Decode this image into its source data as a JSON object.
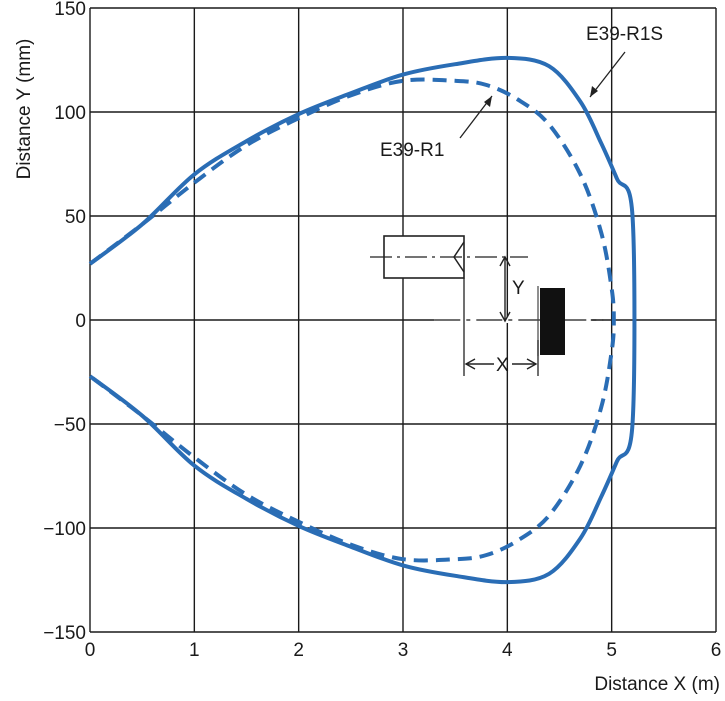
{
  "chart_data": {
    "type": "line",
    "title": "",
    "xlabel": "Distance X (m)",
    "ylabel": "Distance Y (mm)",
    "xlim": [
      0,
      6
    ],
    "ylim": [
      -150,
      150
    ],
    "x_ticks": [
      "0",
      "1",
      "2",
      "3",
      "4",
      "5",
      "6"
    ],
    "y_ticks": [
      "150",
      "100",
      "50",
      "0",
      "−50",
      "−100",
      "−150"
    ],
    "grid": true,
    "line_color": "#2a6db5",
    "series": [
      {
        "name": "E39-R1S",
        "style": "solid",
        "points": [
          [
            0,
            27
          ],
          [
            0.5,
            46
          ],
          [
            1,
            70
          ],
          [
            1.5,
            86
          ],
          [
            2,
            99
          ],
          [
            2.5,
            109
          ],
          [
            3,
            118
          ],
          [
            3.5,
            123
          ],
          [
            4,
            126
          ],
          [
            4.4,
            122
          ],
          [
            4.7,
            105
          ],
          [
            4.9,
            85
          ],
          [
            5.05,
            68
          ],
          [
            5.2,
            50
          ],
          [
            5.2,
            -50
          ],
          [
            5.05,
            -68
          ],
          [
            4.9,
            -85
          ],
          [
            4.7,
            -105
          ],
          [
            4.4,
            -122
          ],
          [
            4,
            -126
          ],
          [
            3.5,
            -123
          ],
          [
            3,
            -118
          ],
          [
            2.5,
            -109
          ],
          [
            2,
            -99
          ],
          [
            1.5,
            -86
          ],
          [
            1,
            -70
          ],
          [
            0.5,
            -46
          ],
          [
            0,
            -27
          ]
        ]
      },
      {
        "name": "E39-R1",
        "style": "dashed",
        "points": [
          [
            0,
            27
          ],
          [
            0.5,
            46
          ],
          [
            1,
            66
          ],
          [
            1.5,
            84
          ],
          [
            2,
            97
          ],
          [
            2.5,
            108
          ],
          [
            3,
            115
          ],
          [
            3.5,
            115
          ],
          [
            3.8,
            113
          ],
          [
            4.1,
            106
          ],
          [
            4.4,
            94
          ],
          [
            4.7,
            70
          ],
          [
            4.9,
            42
          ],
          [
            5.0,
            15
          ],
          [
            5.02,
            0
          ],
          [
            5.0,
            -15
          ],
          [
            4.9,
            -42
          ],
          [
            4.7,
            -70
          ],
          [
            4.4,
            -94
          ],
          [
            4.1,
            -106
          ],
          [
            3.8,
            -113
          ],
          [
            3.5,
            -115
          ],
          [
            3,
            -115
          ],
          [
            2.5,
            -108
          ],
          [
            2,
            -97
          ],
          [
            1.5,
            -84
          ],
          [
            1,
            -66
          ],
          [
            0.5,
            -46
          ],
          [
            0,
            -27
          ]
        ]
      }
    ],
    "annotations": [
      {
        "text": "E39-R1S",
        "series": "E39-R1S"
      },
      {
        "text": "E39-R1",
        "series": "E39-R1"
      }
    ],
    "inset": {
      "y_label": "Y",
      "x_label": "X"
    }
  }
}
